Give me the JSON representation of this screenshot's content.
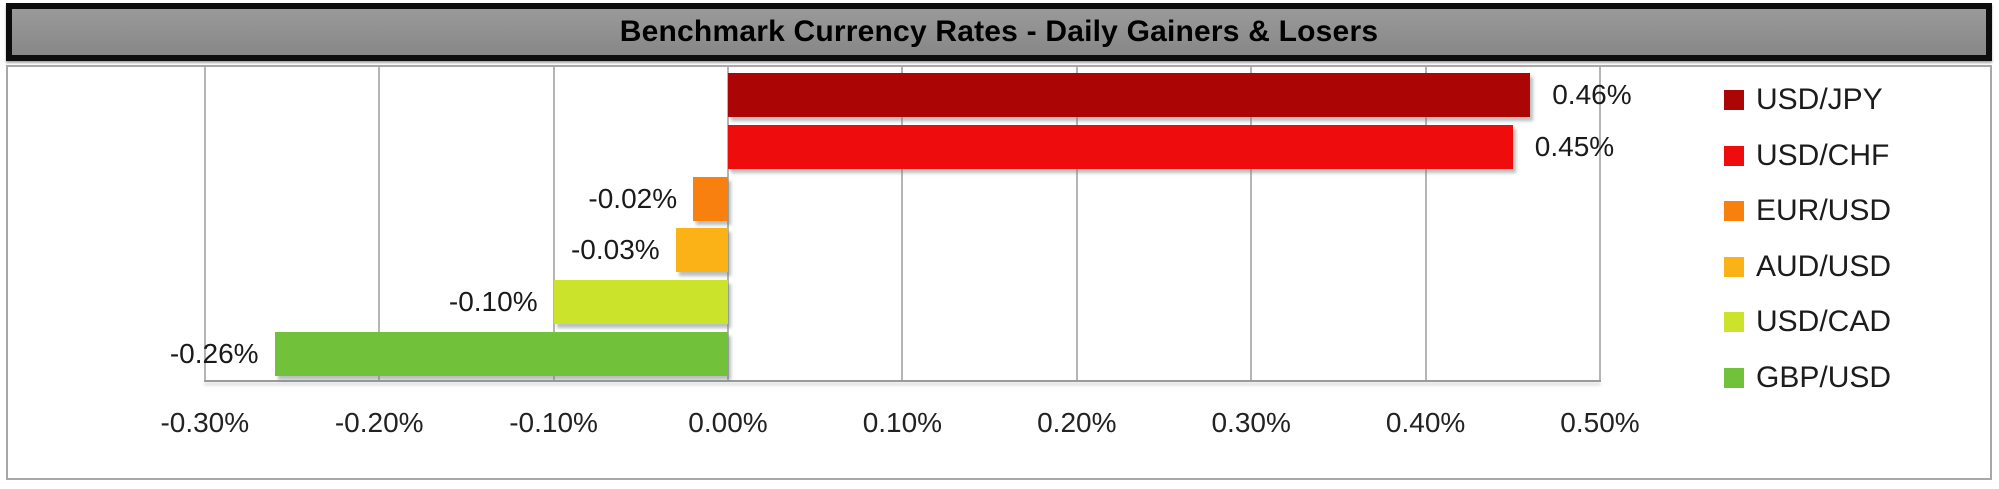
{
  "chart_data": {
    "type": "bar",
    "orientation": "horizontal",
    "title": "Benchmark Currency Rates - Daily Gainers & Losers",
    "categories": [
      "USD/JPY",
      "USD/CHF",
      "EUR/USD",
      "AUD/USD",
      "USD/CAD",
      "GBP/USD"
    ],
    "values": [
      0.46,
      0.45,
      -0.02,
      -0.03,
      -0.1,
      -0.26
    ],
    "value_labels": [
      "0.46%",
      "0.45%",
      "-0.02%",
      "-0.03%",
      "-0.10%",
      "-0.26%"
    ],
    "colors": [
      "#AB0505",
      "#EE0C0C",
      "#F8800F",
      "#FBB216",
      "#CCE32B",
      "#71C23A"
    ],
    "x_ticks": [
      {
        "value": -0.3,
        "label": "-0.30%"
      },
      {
        "value": -0.2,
        "label": "-0.20%"
      },
      {
        "value": -0.1,
        "label": "-0.10%"
      },
      {
        "value": 0.0,
        "label": "0.00%"
      },
      {
        "value": 0.1,
        "label": "0.10%"
      },
      {
        "value": 0.2,
        "label": "0.20%"
      },
      {
        "value": 0.3,
        "label": "0.30%"
      },
      {
        "value": 0.4,
        "label": "0.40%"
      },
      {
        "value": 0.5,
        "label": "0.50%"
      }
    ],
    "xlim": [
      -0.3,
      0.5
    ],
    "grid": true,
    "legend_position": "right",
    "styling": {
      "title_bg": "#8a8a8a",
      "title_border": "#0d0d0d",
      "panel_border": "#a8a8a8",
      "gridline_color": "#b5b5b5",
      "axis_line_color": "#9b9b9b",
      "label_color": "#1a1a1a"
    }
  }
}
